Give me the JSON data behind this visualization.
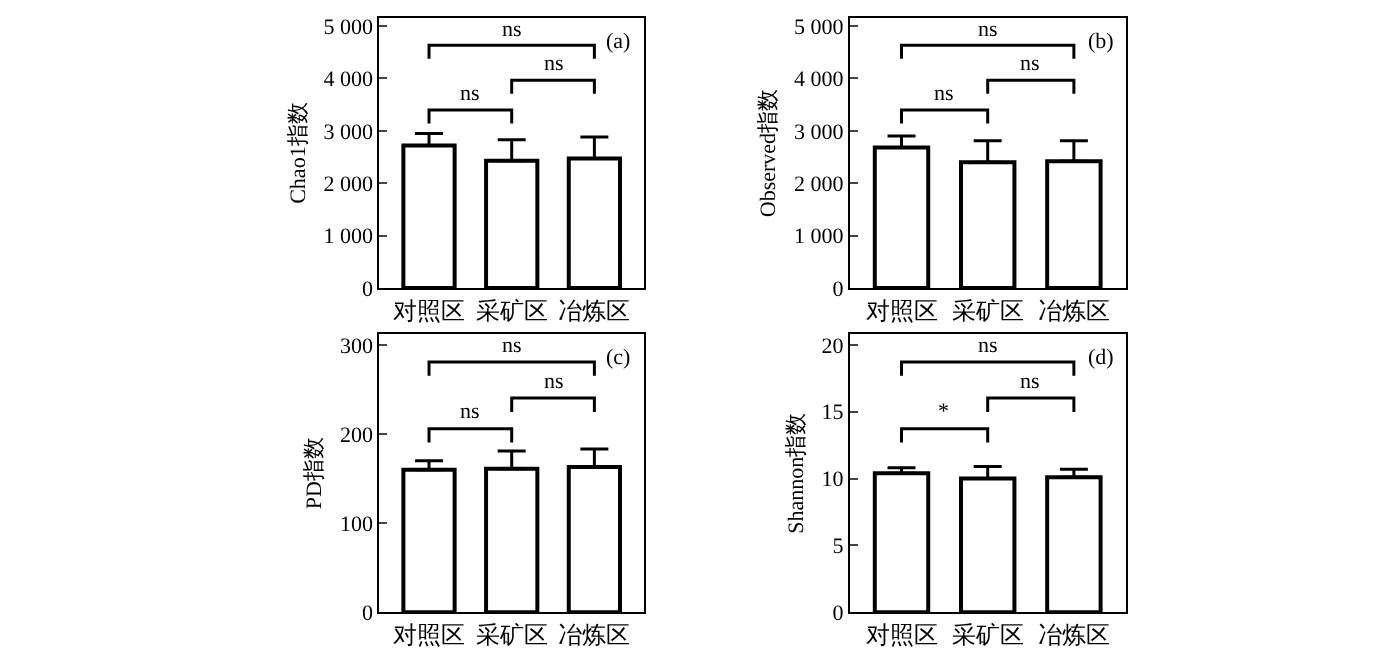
{
  "chart_data": [
    {
      "type": "bar",
      "categories": [
        "对照区",
        "采矿区",
        "冶炼区"
      ],
      "values": [
        2720,
        2430,
        2470
      ],
      "errors": [
        [
          2720,
          2950
        ],
        [
          2430,
          2830
        ],
        [
          2470,
          2880
        ]
      ],
      "color": "#ffffff",
      "ylabel": "Chao1指数",
      "ylim": [
        0,
        5150
      ],
      "yticks": [
        0,
        {
          "value": 1000,
          "label": "1 000"
        },
        {
          "value": 2000,
          "label": "2 000"
        },
        {
          "value": 3000,
          "label": "3 000"
        },
        {
          "value": 4000,
          "label": "4 000"
        },
        {
          "value": 5000,
          "label": "5 000"
        }
      ],
      "annotations": [
        "(a)",
        "ns",
        "ns",
        "ns"
      ]
    },
    {
      "type": "bar",
      "categories": [
        "对照区",
        "采矿区",
        "冶炼区"
      ],
      "values": [
        2680,
        2400,
        2420
      ],
      "errors": [
        [
          2680,
          2900
        ],
        [
          2400,
          2810
        ],
        [
          2420,
          2810
        ]
      ],
      "color": "#ffffff",
      "ylabel": "Observed指数",
      "ylim": [
        0,
        5150
      ],
      "yticks": [
        0,
        {
          "value": 1000,
          "label": "1 000"
        },
        {
          "value": 2000,
          "label": "2 000"
        },
        {
          "value": 3000,
          "label": "3 000"
        },
        {
          "value": 4000,
          "label": "4 000"
        },
        {
          "value": 5000,
          "label": "5 000"
        }
      ],
      "annotations": [
        "(b)",
        "ns",
        "ns",
        "ns"
      ]
    },
    {
      "type": "bar",
      "categories": [
        "对照区",
        "采矿区",
        "冶炼区"
      ],
      "values": [
        160,
        161,
        163
      ],
      "errors": [
        [
          160,
          170
        ],
        [
          161,
          181
        ],
        [
          163,
          183
        ]
      ],
      "color": "#ffffff",
      "ylabel": "PD指数",
      "ylim": [
        0,
        312
      ],
      "yticks": [
        0,
        100,
        200,
        300
      ],
      "annotations": [
        "(c)",
        "ns",
        "ns",
        "ns"
      ]
    },
    {
      "type": "bar",
      "categories": [
        "对照区",
        "采矿区",
        "冶炼区"
      ],
      "values": [
        10.4,
        10.0,
        10.1
      ],
      "errors": [
        [
          10.4,
          10.8
        ],
        [
          10.0,
          10.9
        ],
        [
          10.1,
          10.7
        ]
      ],
      "color": "#ffffff",
      "ylabel": "Shannon指数",
      "ylim": [
        0,
        20.8
      ],
      "yticks": [
        0,
        5,
        10,
        15,
        20
      ],
      "annotations": [
        "(d)",
        "*",
        "ns",
        "ns"
      ]
    }
  ]
}
